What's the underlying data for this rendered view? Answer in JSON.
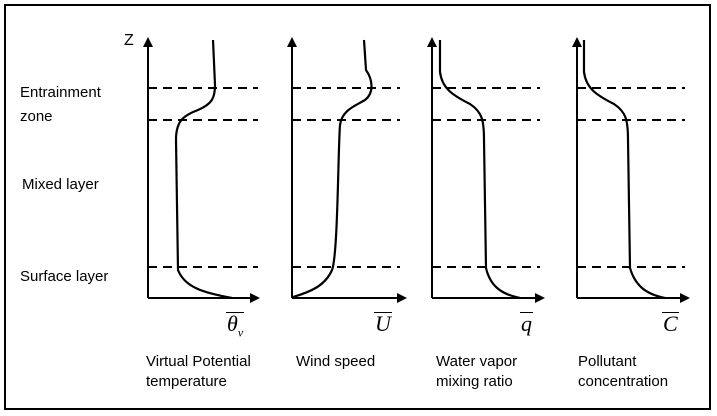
{
  "axis_label_z": "Z",
  "layers": {
    "entrainment_line1": "Entrainment",
    "entrainment_line2": "zone",
    "mixed": "Mixed layer",
    "surface": "Surface layer"
  },
  "profiles": [
    {
      "symbol": "θ",
      "subscript": "v",
      "caption_line1": "Virtual Potential",
      "caption_line2": "temperature"
    },
    {
      "symbol": "U",
      "subscript": "",
      "caption_line1": "Wind speed",
      "caption_line2": ""
    },
    {
      "symbol": "q",
      "subscript": "",
      "caption_line1": "Water vapor",
      "caption_line2": "mixing ratio"
    },
    {
      "symbol": "C",
      "subscript": "",
      "caption_line1": "Pollutant",
      "caption_line2": "concentration"
    }
  ]
}
